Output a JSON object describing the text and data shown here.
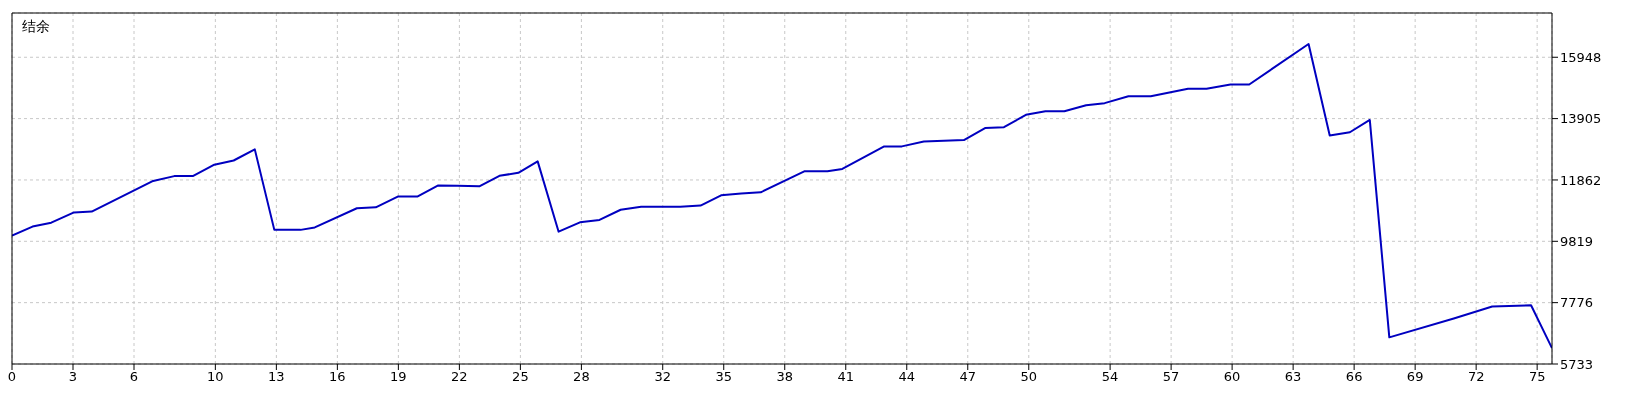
{
  "chart_data": {
    "type": "line",
    "title": "结余",
    "x": [
      0,
      1.01,
      1.93,
      3.05,
      3.92,
      6.94,
      7.98,
      8.89,
      9.95,
      10.9,
      11.94,
      12.9,
      14.19,
      14.89,
      16.96,
      17.89,
      18.97,
      19.93,
      20.96,
      21.9,
      22.98,
      23.97,
      24.9,
      25.85,
      26.88,
      27.93,
      28.89,
      29.93,
      30.94,
      32.86,
      33.86,
      34.87,
      35.86,
      36.82,
      38.96,
      40.1,
      40.83,
      42.89,
      43.76,
      44.84,
      46.81,
      47.85,
      48.78,
      49.86,
      50.82,
      51.75,
      52.82,
      53.73,
      54.9,
      56,
      57.83,
      58.74,
      59.92,
      60.84,
      63.76,
      64.8,
      65.79,
      66.77,
      67.73,
      70.9,
      72.79,
      74.7,
      75.73
    ],
    "series": [
      {
        "color": "#0000c0",
        "values": [
          10010,
          10310,
          10440,
          10780,
          10810,
          11830,
          11990,
          11990,
          12370,
          12510,
          12880,
          10200,
          10200,
          10280,
          10920,
          10950,
          11310,
          11310,
          11680,
          11670,
          11650,
          12000,
          12100,
          12480,
          10140,
          10450,
          10530,
          10870,
          10970,
          10970,
          11010,
          11350,
          11410,
          11450,
          12150,
          12150,
          12230,
          12980,
          12980,
          13140,
          13190,
          13590,
          13620,
          14030,
          14150,
          14150,
          14350,
          14420,
          14650,
          14650,
          14900,
          14900,
          15040,
          15040,
          16390,
          13340,
          13450,
          13860,
          6620,
          7250,
          7650,
          7690,
          6260
        ]
      }
    ],
    "xlim": [
      0,
      75.73
    ],
    "xticks": [
      0,
      3,
      6,
      10,
      13,
      16,
      19,
      22,
      25,
      28,
      32,
      35,
      38,
      41,
      44,
      47,
      50,
      54,
      57,
      60,
      63,
      66,
      69,
      72,
      75
    ],
    "ylim": [
      5733,
      17422
    ],
    "yticks": [
      5733,
      7776,
      9819,
      11862,
      13905,
      15948
    ],
    "grid": true,
    "legend": false,
    "marker": "none",
    "line_style": "solid"
  }
}
